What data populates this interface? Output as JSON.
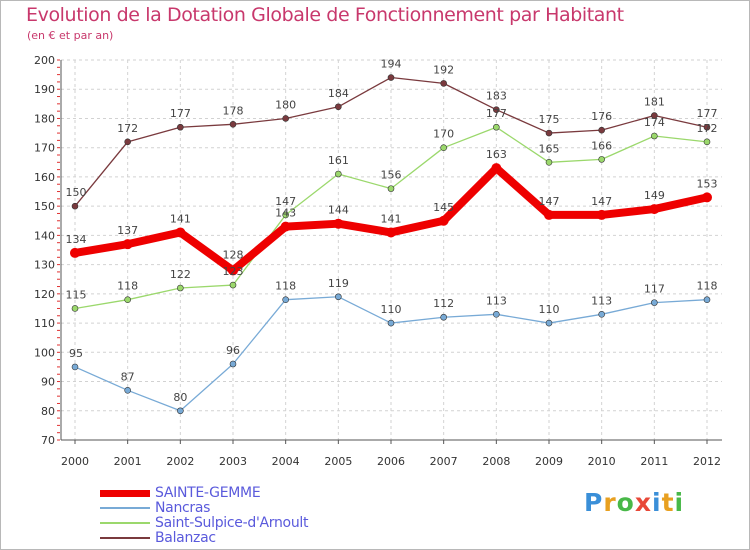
{
  "title": "Evolution de la Dotation Globale de Fonctionnement par Habitant",
  "subtitle": "(en € et par an)",
  "logo": {
    "letters": [
      "P",
      "r",
      "o",
      "x",
      "i",
      "t",
      "i"
    ],
    "colors": [
      "#3a8fd8",
      "#e8a020",
      "#48b848",
      "#e84838",
      "#3a8fd8",
      "#e8a020",
      "#48b848"
    ]
  },
  "chart_data": {
    "type": "line",
    "title": "Evolution de la Dotation Globale de Fonctionnement par Habitant",
    "subtitle": "(en € et par an)",
    "xlabel": "",
    "ylabel": "",
    "ylim": [
      70,
      200
    ],
    "yticks": [
      70,
      80,
      90,
      100,
      110,
      120,
      130,
      140,
      150,
      160,
      170,
      180,
      190,
      200
    ],
    "grid": true,
    "legend": "bottom-left",
    "categories": [
      "2000",
      "2001",
      "2002",
      "2003",
      "2004",
      "2005",
      "2006",
      "2007",
      "2008",
      "2009",
      "2010",
      "2011",
      "2012"
    ],
    "series": [
      {
        "name": "SAINTE-GEMME",
        "color": "#ee0000",
        "values": [
          134,
          137,
          141,
          128,
          143,
          144,
          141,
          145,
          163,
          147,
          147,
          149,
          153
        ]
      },
      {
        "name": "Nancras",
        "color": "#78aad6",
        "values": [
          95,
          87,
          80,
          96,
          118,
          119,
          110,
          112,
          113,
          110,
          113,
          117,
          118
        ]
      },
      {
        "name": "Saint-Sulpice-d'Arnoult",
        "color": "#9bd86c",
        "values": [
          115,
          118,
          122,
          123,
          147,
          161,
          156,
          170,
          177,
          165,
          166,
          174,
          172
        ]
      },
      {
        "name": "Balanzac",
        "color": "#7a3a3e",
        "values": [
          150,
          172,
          177,
          178,
          180,
          184,
          194,
          192,
          183,
          175,
          176,
          181,
          177
        ]
      }
    ],
    "data_labels": {
      "SAINTE-GEMME": [
        "134",
        "137",
        "141",
        "128",
        "143",
        "144",
        "141",
        "145",
        "163",
        "147",
        "147",
        "149",
        "153"
      ],
      "Nancras": [
        "95",
        "87",
        "80",
        "96",
        "118",
        "119",
        "110",
        "112",
        "113",
        "110",
        "113",
        "117",
        "118"
      ],
      "Saint-Sulpice-d'Arnoult": [
        "115",
        "118",
        "122",
        "123",
        "147",
        "161",
        "156",
        "170",
        "177",
        "165",
        "166",
        "174",
        "172"
      ],
      "Balanzac": [
        "150",
        "172",
        "177",
        "178",
        "180",
        "184",
        "194",
        "192",
        "183",
        "175",
        "176",
        "181",
        "177"
      ]
    }
  }
}
